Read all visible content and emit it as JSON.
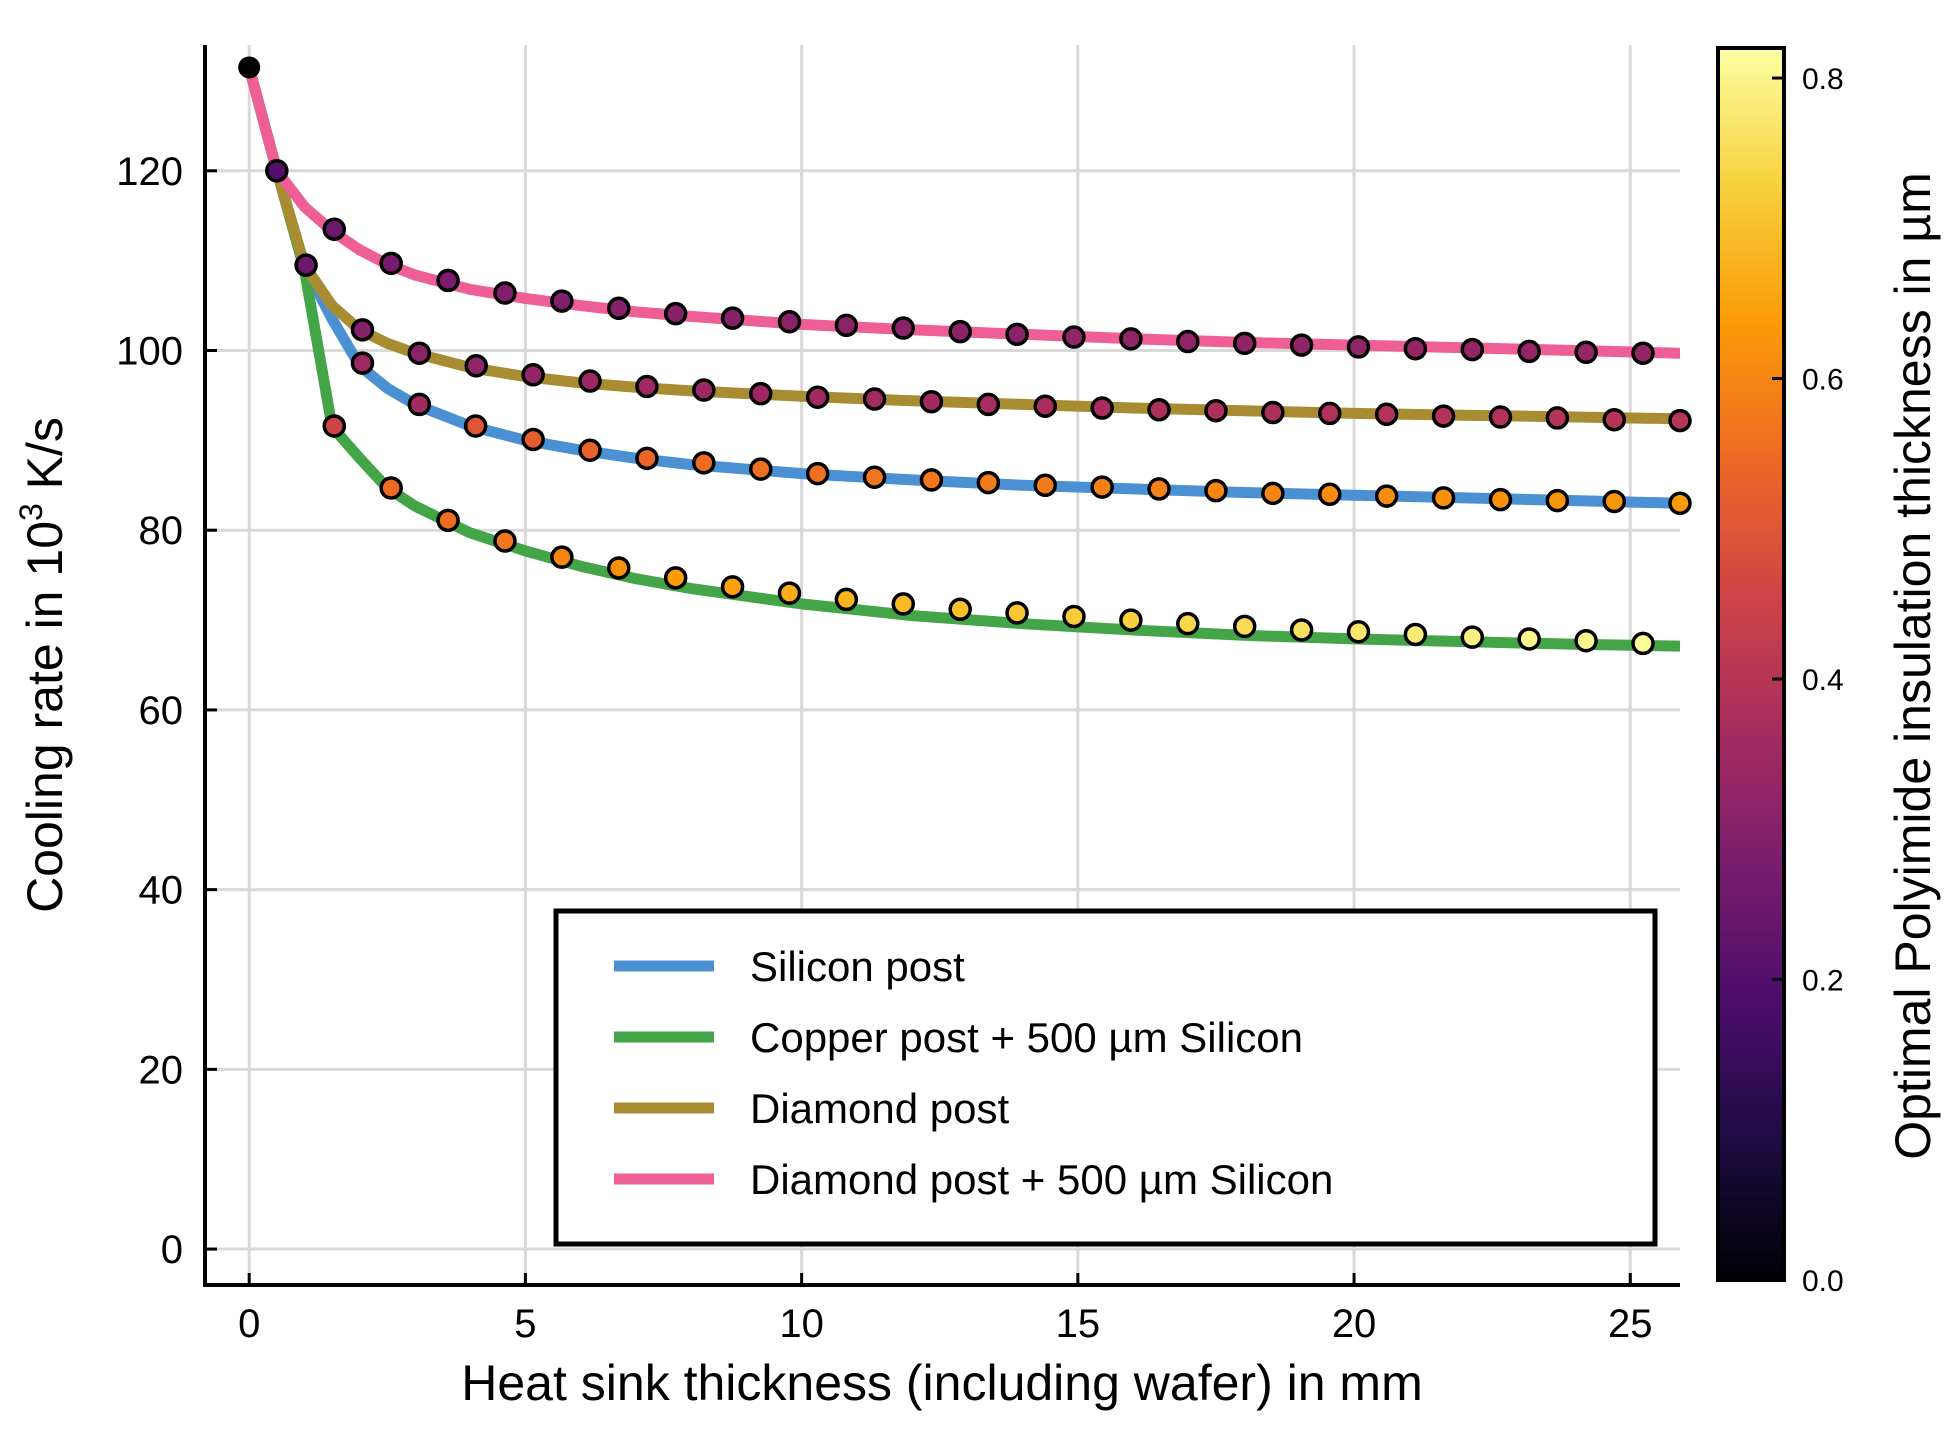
{
  "chart_data": {
    "type": "line",
    "xlabel": "Heat sink thickness (including wafer) in mm",
    "ylabel_main": "Cooling rate in 10",
    "ylabel_sup": "3",
    "ylabel_tail": " K/s",
    "colorbar_label": "Optimal Polyimide insulation thickness in µm",
    "xlim": [
      -0.8,
      25.9
    ],
    "ylim": [
      -4,
      134
    ],
    "xticks": [
      0,
      5,
      10,
      15,
      20,
      25
    ],
    "yticks": [
      0,
      20,
      40,
      60,
      80,
      100,
      120
    ],
    "colorbar_range": [
      0,
      0.82
    ],
    "colorbar_ticks": [
      "0.0",
      "0.2",
      "0.4",
      "0.6",
      "0.8"
    ],
    "colorbar_tick_values": [
      0,
      0.2,
      0.4,
      0.6,
      0.8
    ],
    "grid": true,
    "legend_position": "lower-right",
    "colormap_stops": [
      "#000004",
      "#1b0c41",
      "#4a0c6b",
      "#781c6d",
      "#a52c60",
      "#cf4446",
      "#ed6925",
      "#fb9b06",
      "#f7d13d",
      "#fcffa4"
    ],
    "start_point": {
      "x": 0,
      "y": 131.5
    },
    "series": [
      {
        "name": "Silicon post",
        "color": "#4a90d2",
        "x": [
          0,
          0.5,
          1,
          1.5,
          2,
          2.5,
          3,
          4,
          5,
          6,
          7,
          8,
          10,
          12,
          14,
          16,
          18,
          20,
          22,
          24,
          25.9
        ],
        "y": [
          131.5,
          120.0,
          109.5,
          103.5,
          98.3,
          95.8,
          94.0,
          91.6,
          90.0,
          88.9,
          88.0,
          87.3,
          86.3,
          85.6,
          85.0,
          84.6,
          84.2,
          83.9,
          83.6,
          83.3,
          83.0
        ],
        "markers": [
          {
            "x": 2.05,
            "y": 98.6,
            "c": 0.35
          },
          {
            "x": 3.08,
            "y": 94.0,
            "c": 0.36
          },
          {
            "x": 4.1,
            "y": 91.6,
            "c": 0.5
          },
          {
            "x": 5.14,
            "y": 90.1,
            "c": 0.52
          },
          {
            "x": 6.17,
            "y": 88.9,
            "c": 0.53
          },
          {
            "x": 7.2,
            "y": 88.0,
            "c": 0.54
          },
          {
            "x": 8.23,
            "y": 87.5,
            "c": 0.55
          },
          {
            "x": 9.26,
            "y": 86.8,
            "c": 0.56
          },
          {
            "x": 10.29,
            "y": 86.3,
            "c": 0.56
          },
          {
            "x": 11.32,
            "y": 85.9,
            "c": 0.57
          },
          {
            "x": 12.35,
            "y": 85.6,
            "c": 0.57
          },
          {
            "x": 13.38,
            "y": 85.3,
            "c": 0.58
          },
          {
            "x": 14.41,
            "y": 85.0,
            "c": 0.58
          },
          {
            "x": 15.44,
            "y": 84.8,
            "c": 0.59
          },
          {
            "x": 16.47,
            "y": 84.6,
            "c": 0.59
          },
          {
            "x": 17.5,
            "y": 84.4,
            "c": 0.6
          },
          {
            "x": 18.53,
            "y": 84.1,
            "c": 0.6
          },
          {
            "x": 19.56,
            "y": 84.0,
            "c": 0.61
          },
          {
            "x": 20.59,
            "y": 83.8,
            "c": 0.61
          },
          {
            "x": 21.62,
            "y": 83.6,
            "c": 0.62
          },
          {
            "x": 22.65,
            "y": 83.4,
            "c": 0.62
          },
          {
            "x": 23.68,
            "y": 83.3,
            "c": 0.63
          },
          {
            "x": 24.71,
            "y": 83.2,
            "c": 0.63
          },
          {
            "x": 25.9,
            "y": 83.0,
            "c": 0.64
          }
        ]
      },
      {
        "name": "Copper post + 500 µm Silicon",
        "color": "#44a548",
        "x": [
          0,
          0.5,
          1.0,
          1.5,
          2.0,
          2.5,
          3,
          4,
          5,
          6,
          7,
          8,
          10,
          12,
          14,
          16,
          18,
          20,
          22,
          24,
          25.9
        ],
        "y": [
          131.5,
          120.0,
          109.0,
          91.5,
          88.0,
          84.7,
          82.7,
          79.7,
          77.7,
          76.0,
          74.6,
          73.5,
          71.8,
          70.5,
          69.6,
          68.9,
          68.3,
          67.9,
          67.6,
          67.3,
          67.1
        ],
        "markers": [
          {
            "x": 1.54,
            "y": 91.6,
            "c": 0.45
          },
          {
            "x": 2.57,
            "y": 84.7,
            "c": 0.55
          },
          {
            "x": 3.6,
            "y": 81.1,
            "c": 0.55
          },
          {
            "x": 4.63,
            "y": 78.8,
            "c": 0.57
          },
          {
            "x": 5.66,
            "y": 77.0,
            "c": 0.6
          },
          {
            "x": 6.69,
            "y": 75.8,
            "c": 0.62
          },
          {
            "x": 7.72,
            "y": 74.7,
            "c": 0.64
          },
          {
            "x": 8.75,
            "y": 73.7,
            "c": 0.65
          },
          {
            "x": 9.78,
            "y": 73.0,
            "c": 0.67
          },
          {
            "x": 10.81,
            "y": 72.3,
            "c": 0.68
          },
          {
            "x": 11.84,
            "y": 71.8,
            "c": 0.69
          },
          {
            "x": 12.87,
            "y": 71.2,
            "c": 0.7
          },
          {
            "x": 13.9,
            "y": 70.8,
            "c": 0.71
          },
          {
            "x": 14.93,
            "y": 70.4,
            "c": 0.72
          },
          {
            "x": 15.96,
            "y": 70.0,
            "c": 0.73
          },
          {
            "x": 16.99,
            "y": 69.6,
            "c": 0.74
          },
          {
            "x": 18.02,
            "y": 69.3,
            "c": 0.75
          },
          {
            "x": 19.05,
            "y": 68.9,
            "c": 0.76
          },
          {
            "x": 20.08,
            "y": 68.7,
            "c": 0.77
          },
          {
            "x": 21.11,
            "y": 68.4,
            "c": 0.78
          },
          {
            "x": 22.14,
            "y": 68.1,
            "c": 0.79
          },
          {
            "x": 23.17,
            "y": 67.9,
            "c": 0.8
          },
          {
            "x": 24.2,
            "y": 67.7,
            "c": 0.8
          },
          {
            "x": 25.23,
            "y": 67.4,
            "c": 0.81
          }
        ]
      },
      {
        "name": "Diamond post",
        "color": "#a88c32",
        "x": [
          0,
          0.5,
          1.0,
          1.5,
          2.0,
          2.5,
          3,
          4,
          5,
          6,
          7,
          8,
          10,
          12,
          14,
          16,
          18,
          20,
          22,
          24,
          25.9
        ],
        "y": [
          131.5,
          120.0,
          109.5,
          105.0,
          102.3,
          100.8,
          99.7,
          98.1,
          97.1,
          96.4,
          95.9,
          95.5,
          94.9,
          94.4,
          94.0,
          93.6,
          93.3,
          93.0,
          92.8,
          92.6,
          92.4
        ],
        "markers": [
          {
            "x": 2.05,
            "y": 102.3,
            "c": 0.3
          },
          {
            "x": 3.08,
            "y": 99.7,
            "c": 0.31
          },
          {
            "x": 4.11,
            "y": 98.3,
            "c": 0.32
          },
          {
            "x": 5.14,
            "y": 97.3,
            "c": 0.33
          },
          {
            "x": 6.17,
            "y": 96.6,
            "c": 0.34
          },
          {
            "x": 7.2,
            "y": 96.0,
            "c": 0.35
          },
          {
            "x": 8.23,
            "y": 95.6,
            "c": 0.35
          },
          {
            "x": 9.26,
            "y": 95.2,
            "c": 0.35
          },
          {
            "x": 10.29,
            "y": 94.8,
            "c": 0.36
          },
          {
            "x": 11.32,
            "y": 94.6,
            "c": 0.36
          },
          {
            "x": 12.35,
            "y": 94.3,
            "c": 0.36
          },
          {
            "x": 13.38,
            "y": 94.0,
            "c": 0.37
          },
          {
            "x": 14.41,
            "y": 93.8,
            "c": 0.37
          },
          {
            "x": 15.44,
            "y": 93.6,
            "c": 0.37
          },
          {
            "x": 16.47,
            "y": 93.4,
            "c": 0.38
          },
          {
            "x": 17.5,
            "y": 93.3,
            "c": 0.38
          },
          {
            "x": 18.53,
            "y": 93.1,
            "c": 0.38
          },
          {
            "x": 19.56,
            "y": 93.0,
            "c": 0.39
          },
          {
            "x": 20.59,
            "y": 92.9,
            "c": 0.39
          },
          {
            "x": 21.62,
            "y": 92.7,
            "c": 0.39
          },
          {
            "x": 22.65,
            "y": 92.6,
            "c": 0.39
          },
          {
            "x": 23.68,
            "y": 92.5,
            "c": 0.4
          },
          {
            "x": 24.71,
            "y": 92.3,
            "c": 0.4
          },
          {
            "x": 25.9,
            "y": 92.2,
            "c": 0.4
          }
        ]
      },
      {
        "name": "Diamond post + 500 µm Silicon",
        "color": "#ee5f96",
        "x": [
          0,
          0.5,
          1,
          1.5,
          2,
          2.5,
          3,
          4,
          5,
          6,
          7,
          8,
          10,
          12,
          14,
          16,
          18,
          20,
          22,
          24,
          25.9
        ],
        "y": [
          131.5,
          120.0,
          116.0,
          113.3,
          111.2,
          109.6,
          108.4,
          106.8,
          105.8,
          105.0,
          104.3,
          103.8,
          102.9,
          102.3,
          101.8,
          101.3,
          100.9,
          100.6,
          100.3,
          100.0,
          99.7
        ],
        "markers": [
          {
            "x": 0.5,
            "y": 120.0,
            "c": 0.2
          },
          {
            "x": 1.54,
            "y": 113.5,
            "c": 0.25
          },
          {
            "x": 2.57,
            "y": 109.7,
            "c": 0.27
          },
          {
            "x": 3.6,
            "y": 107.8,
            "c": 0.28
          },
          {
            "x": 4.63,
            "y": 106.4,
            "c": 0.29
          },
          {
            "x": 5.66,
            "y": 105.5,
            "c": 0.29
          },
          {
            "x": 6.69,
            "y": 104.7,
            "c": 0.3
          },
          {
            "x": 7.72,
            "y": 104.1,
            "c": 0.3
          },
          {
            "x": 8.75,
            "y": 103.6,
            "c": 0.3
          },
          {
            "x": 9.78,
            "y": 103.2,
            "c": 0.31
          },
          {
            "x": 10.81,
            "y": 102.8,
            "c": 0.31
          },
          {
            "x": 11.84,
            "y": 102.5,
            "c": 0.31
          },
          {
            "x": 12.87,
            "y": 102.1,
            "c": 0.31
          },
          {
            "x": 13.9,
            "y": 101.8,
            "c": 0.31
          },
          {
            "x": 14.93,
            "y": 101.5,
            "c": 0.32
          },
          {
            "x": 15.96,
            "y": 101.3,
            "c": 0.32
          },
          {
            "x": 16.99,
            "y": 101.0,
            "c": 0.32
          },
          {
            "x": 18.02,
            "y": 100.8,
            "c": 0.32
          },
          {
            "x": 19.05,
            "y": 100.6,
            "c": 0.32
          },
          {
            "x": 20.08,
            "y": 100.4,
            "c": 0.32
          },
          {
            "x": 21.11,
            "y": 100.2,
            "c": 0.33
          },
          {
            "x": 22.14,
            "y": 100.1,
            "c": 0.33
          },
          {
            "x": 23.17,
            "y": 99.9,
            "c": 0.33
          },
          {
            "x": 24.2,
            "y": 99.8,
            "c": 0.33
          },
          {
            "x": 25.23,
            "y": 99.7,
            "c": 0.33
          }
        ]
      }
    ],
    "extra_markers": [
      {
        "x": 1.03,
        "y": 109.5,
        "c": 0.25
      }
    ]
  }
}
